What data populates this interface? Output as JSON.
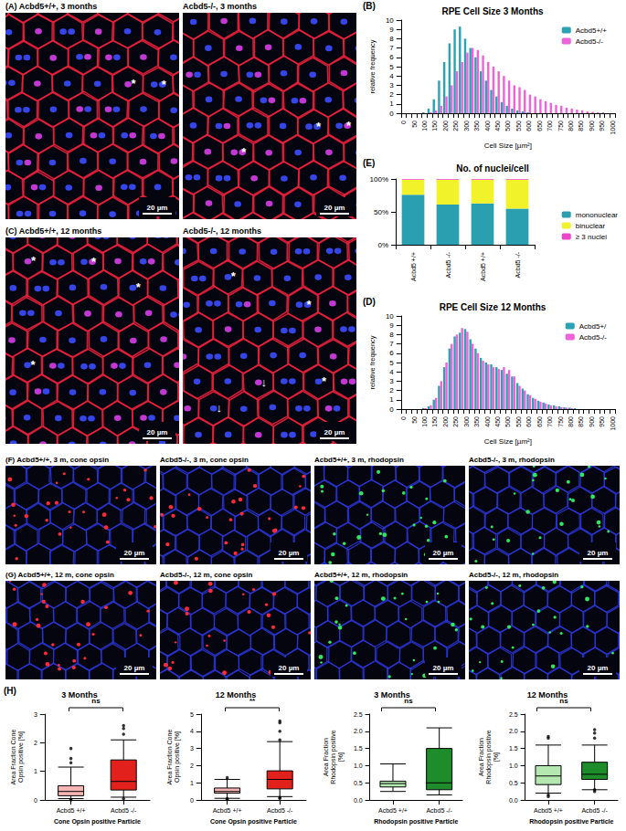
{
  "image_panels": [
    {
      "letter": "(A)",
      "border_color": "#e8203c",
      "nucleus_colors": [
        "#3c4cff",
        "#d83ee8"
      ],
      "images": [
        {
          "title": "Acbd5+/+, 3 months",
          "scale_bar": "20 µm",
          "marks": [
            "*",
            "*"
          ]
        },
        {
          "title": "Acbd5-/-, 3 months",
          "scale_bar": "20 µm",
          "marks": [
            "*",
            "*",
            "*"
          ]
        }
      ]
    },
    {
      "letter": "(C)",
      "border_color": "#e8203c",
      "nucleus_colors": [
        "#3c4cff",
        "#d83ee8"
      ],
      "images": [
        {
          "title": "Acbd5+/+, 12 months",
          "scale_bar": "20 µm",
          "marks": [
            "*",
            "*",
            "*",
            "*"
          ]
        },
        {
          "title": "Acbd5-/-, 12 months",
          "scale_bar": "20 µm",
          "marks": [
            "*",
            "*",
            "*",
            "↓",
            "↓"
          ]
        }
      ]
    },
    {
      "letter": "(F)",
      "border_color": "#2a36d8",
      "images": [
        {
          "title": "Acbd5+/+, 3 m, cone opsin",
          "scale_bar": "20 µm",
          "dot_color": "#ff2a3a"
        },
        {
          "title": "Acbd5-/-, 3 m, cone opsin",
          "scale_bar": "20 µm",
          "dot_color": "#ff2a3a"
        },
        {
          "title": "Acbd5+/+, 3 m, rhodopsin",
          "scale_bar": "20 µm",
          "dot_color": "#2ee860"
        },
        {
          "title": "Acbd5-/-, 3 m, rhodopsin",
          "scale_bar": "20 µm",
          "dot_color": "#2ee860"
        }
      ]
    },
    {
      "letter": "(G)",
      "border_color": "#2a36d8",
      "images": [
        {
          "title": "Acbd5+/+, 12 m, cone opsin",
          "scale_bar": "20 µm",
          "dot_color": "#ff2a3a"
        },
        {
          "title": "Acbd5-/-, 12 m, cone opsin",
          "scale_bar": "20 µm",
          "dot_color": "#ff2a3a"
        },
        {
          "title": "Acbd5+/+, 12 m, rhodopsin",
          "scale_bar": "20 µm",
          "dot_color": "#2ee860"
        },
        {
          "title": "Acbd5-/-, 12 m, rhodopsin",
          "scale_bar": "20 µm",
          "dot_color": "#2ee860"
        }
      ]
    }
  ],
  "chart_data": [
    {
      "type": "bar",
      "panel_label": "(B)",
      "title": "RPE Cell Size 3 Months",
      "xlabel": "Cell Size [µm²]",
      "ylabel": "relative frequency",
      "categories": [
        "0",
        null,
        "50",
        null,
        "100",
        null,
        "150",
        null,
        "200",
        null,
        "250",
        null,
        "300",
        null,
        "350",
        null,
        "400",
        null,
        "450",
        null,
        "500",
        null,
        "550",
        null,
        "600",
        null,
        "650",
        null,
        "700",
        null,
        "750",
        null,
        "800",
        null,
        "850",
        null,
        "900",
        null,
        "950",
        null,
        "1000"
      ],
      "series": [
        {
          "name": "Acbd5+/+",
          "color": "#2aa3b4",
          "values": [
            0,
            0,
            0,
            0,
            0.1,
            0.5,
            1.5,
            3.5,
            5.5,
            7.5,
            9,
            9.3,
            8,
            7,
            6,
            4.5,
            3.5,
            2.5,
            1.8,
            1.2,
            0.8,
            0.5,
            0.3,
            0.2,
            0.1,
            0,
            0,
            0,
            0,
            0,
            0,
            0,
            0,
            0,
            0,
            0,
            0,
            0,
            0,
            0,
            0
          ]
        },
        {
          "name": "Acbd5-/-",
          "color": "#f062d8",
          "values": [
            0,
            0,
            0,
            0,
            0,
            0.1,
            0.3,
            0.8,
            1.8,
            3,
            4.5,
            5.5,
            6.5,
            7,
            6.8,
            6.2,
            5.5,
            5,
            4.5,
            4,
            3.5,
            3,
            2.8,
            2.5,
            2,
            1.8,
            1.5,
            1.3,
            1.1,
            0.9,
            0.8,
            0.6,
            0.5,
            0.4,
            0.3,
            0.2,
            0.15,
            0.1,
            0.1,
            0,
            0
          ]
        }
      ],
      "ylim": [
        0,
        10
      ],
      "yticks": [
        0,
        1,
        2,
        3,
        4,
        5,
        6,
        7,
        8,
        9,
        10
      ],
      "legend": "upper right",
      "grid": false
    },
    {
      "type": "bar",
      "panel_label": "(E)",
      "title": "No. of nuclei/cell",
      "stacked": true,
      "categories": [
        "Acbd5 +/+",
        "Acbd5 -/-",
        "Acbd5 +/+",
        "Acbd5 -/-"
      ],
      "series": [
        {
          "name": "mononuclear",
          "color": "#2a9fb0",
          "values": [
            76,
            61,
            63,
            55
          ]
        },
        {
          "name": "binuclear",
          "color": "#f2f22a",
          "values": [
            23,
            38,
            36,
            44
          ]
        },
        {
          "name": "≥ 3 nuclei",
          "color": "#ee44cc",
          "values": [
            1,
            1,
            1,
            1
          ]
        }
      ],
      "ylim": [
        0,
        100
      ],
      "yticks": [
        {
          "value": 0,
          "label": "0%"
        },
        {
          "value": 50,
          "label": "50%"
        },
        {
          "value": 100,
          "label": "100%"
        }
      ],
      "legend": "right",
      "grid": false
    },
    {
      "type": "bar",
      "panel_label": "(D)",
      "title": "RPE Cell Size 12 Months",
      "xlabel": "Cell Size [µm²]",
      "ylabel": "relative frequency",
      "categories": [
        "0",
        null,
        "50",
        null,
        "100",
        null,
        "150",
        null,
        "200",
        null,
        "250",
        null,
        "300",
        null,
        "350",
        null,
        "400",
        null,
        "450",
        null,
        "500",
        null,
        "550",
        null,
        "600",
        null,
        "650",
        null,
        "700",
        null,
        "750",
        null,
        "800",
        null,
        "850",
        null,
        "900",
        null,
        "950",
        null,
        "1000"
      ],
      "series": [
        {
          "name": "Acbd5+/",
          "color": "#2aa3b4",
          "values": [
            0,
            0,
            0,
            0,
            0.1,
            0.3,
            1,
            2.5,
            4.5,
            6.5,
            7.8,
            8.2,
            8.6,
            7.5,
            6.5,
            5.5,
            5,
            4.8,
            4.5,
            4.2,
            3.8,
            3.5,
            2.8,
            2.2,
            1.6,
            1.2,
            0.9,
            0.7,
            0.5,
            0.4,
            0.3,
            0.2,
            0.15,
            0.1,
            0,
            0,
            0,
            0,
            0,
            0,
            0
          ]
        },
        {
          "name": "Acbd5-/-",
          "color": "#f062d8",
          "values": [
            0,
            0,
            0,
            0,
            0.1,
            0.4,
            1.2,
            3,
            5,
            7,
            8,
            8.7,
            8.3,
            7,
            6,
            5.2,
            4.8,
            4.5,
            4.3,
            4.5,
            4.2,
            3.5,
            2.5,
            2,
            1.5,
            1.1,
            0.8,
            0.6,
            0.4,
            0.3,
            0.2,
            0.15,
            0.1,
            0,
            0,
            0,
            0,
            0,
            0,
            0,
            0
          ]
        }
      ],
      "ylim": [
        0,
        10
      ],
      "yticks": [
        0,
        1,
        2,
        3,
        4,
        5,
        6,
        7,
        8,
        9,
        10
      ],
      "legend": "upper right",
      "grid": false
    },
    {
      "type": "boxplot",
      "panel_label": "(H)",
      "title": "3 Months",
      "ylabel": "Area Fraction Cone Opsin positive [%]",
      "xlabel": "Cone Opsin positive Particle",
      "categories": [
        "Acbd5 +/+",
        "Acbd5 -/-"
      ],
      "colors": [
        "#f5b5b5",
        "#e3211c"
      ],
      "boxes": [
        [
          0.05,
          0.15,
          0.3,
          0.5,
          1.15
        ],
        [
          0.1,
          0.35,
          0.65,
          1.4,
          2.1
        ]
      ],
      "outliers": [
        [
          0,
          0.02,
          1.3,
          1.45,
          1.8
        ],
        [
          0.05,
          2.3,
          2.5,
          2.6
        ]
      ],
      "annotations": [
        "ns"
      ],
      "ylim": [
        0,
        3
      ],
      "yticks": [
        0,
        1,
        2,
        3
      ],
      "grid": false
    },
    {
      "type": "boxplot",
      "title": "12 Months",
      "ylabel": "Area Fraction Cone Opsin positive [%]",
      "xlabel": "Cone Opsin positive Particle",
      "categories": [
        "Acbd5 +/+",
        "Acbd5 -/-"
      ],
      "colors": [
        "#f5b5b5",
        "#e3211c"
      ],
      "boxes": [
        [
          0.1,
          0.4,
          0.5,
          0.7,
          1.2
        ],
        [
          0.2,
          0.65,
          1.2,
          1.7,
          3.4
        ]
      ],
      "outliers": [
        [
          0.05,
          0.08,
          1.3
        ],
        [
          0.1,
          0.15,
          3.5,
          4.0,
          4.5,
          4.6
        ]
      ],
      "annotations": [
        "**"
      ],
      "ylim": [
        0,
        5
      ],
      "yticks": [
        0,
        1,
        2,
        3,
        4,
        5
      ],
      "grid": false
    },
    {
      "type": "boxplot",
      "title": "3 Months",
      "ylabel": "Area Fraction Rhodopsin positive [%]",
      "xlabel": "Rhodopsin positive Particle",
      "categories": [
        "Acbd5 +/+",
        "Acbd5 -/-"
      ],
      "colors": [
        "#b5e8b0",
        "#1e8c2a"
      ],
      "boxes": [
        [
          0.25,
          0.38,
          0.48,
          0.55,
          1.05
        ],
        [
          0.15,
          0.3,
          0.5,
          1.5,
          2.1
        ]
      ],
      "outliers": [
        [],
        []
      ],
      "annotations": [
        "ns"
      ],
      "ylim": [
        0,
        2.5
      ],
      "yticks": [
        {
          "value": 0,
          "label": "0.0"
        },
        0.5,
        {
          "value": 1,
          "label": "1.0"
        },
        1.5,
        {
          "value": 2,
          "label": "2.0"
        },
        2.5
      ],
      "grid": false
    },
    {
      "type": "boxplot",
      "title": "12 Months",
      "ylabel": "Area Fraction Rhodopsin positive [%]",
      "xlabel": "Rhodopsin positive Particle",
      "categories": [
        "Acbd5 +/+",
        "Acbd5 -/-"
      ],
      "colors": [
        "#b5e8b0",
        "#1e8c2a"
      ],
      "boxes": [
        [
          0.2,
          0.45,
          0.7,
          1.0,
          1.6
        ],
        [
          0.3,
          0.6,
          0.75,
          1.1,
          1.6
        ]
      ],
      "outliers": [
        [
          0.1,
          0.15,
          1.8,
          1.85
        ],
        [
          0.25,
          0.3,
          1.8,
          1.95,
          2.05
        ]
      ],
      "annotations": [
        "ns"
      ],
      "ylim": [
        0,
        2.5
      ],
      "yticks": [
        {
          "value": 0,
          "label": "0.0"
        },
        0.5,
        {
          "value": 1,
          "label": "1.0"
        },
        1.5,
        {
          "value": 2,
          "label": "2.0"
        },
        2.5
      ],
      "grid": false
    }
  ]
}
